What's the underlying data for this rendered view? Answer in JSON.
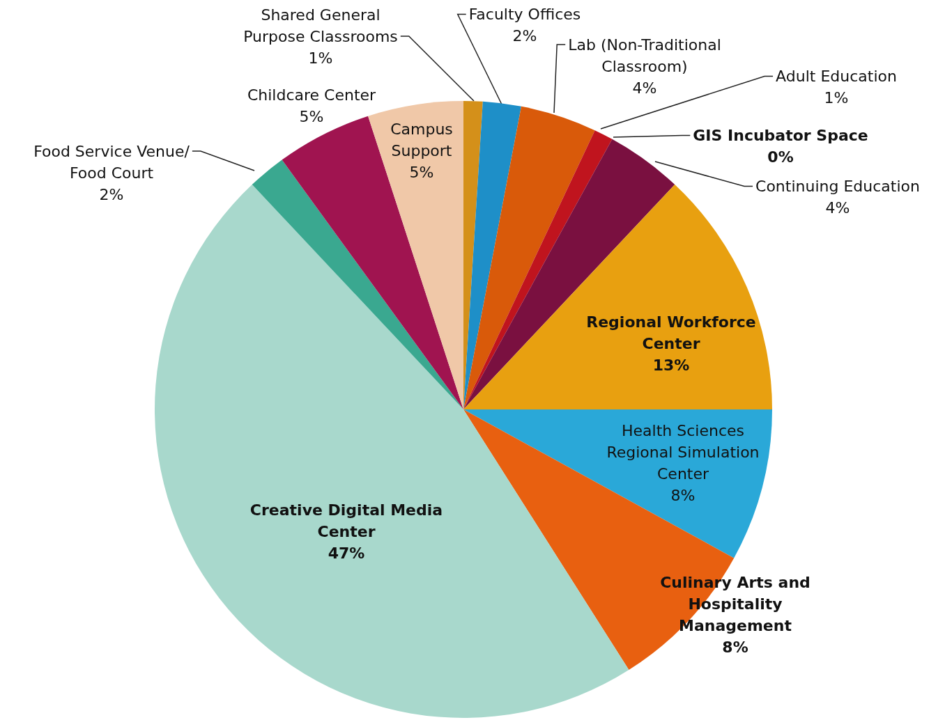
{
  "chart_data": {
    "type": "pie",
    "categories": [
      "Shared General Purpose Classrooms",
      "Faculty Offices",
      "Lab (Non-Traditional Classroom)",
      "Adult Education",
      "GIS Incubator Space",
      "Continuing Education",
      "Regional Workforce Center",
      "Health Sciences Regional Simulation Center",
      "Culinary Arts and Hospitality Management",
      "Creative Digital Media Center",
      "Food Service Venue/ Food Court",
      "Childcare Center",
      "Campus Support"
    ],
    "values": [
      1,
      2,
      4,
      1,
      0,
      4,
      13,
      8,
      8,
      47,
      2,
      5,
      5
    ],
    "value_labels": [
      "1%",
      "2%",
      "4%",
      "1%",
      "0%",
      "4%",
      "13%",
      "8%",
      "8%",
      "47%",
      "2%",
      "5%",
      "5%"
    ],
    "colors": [
      "#d4901a",
      "#1e8fc8",
      "#d95a0a",
      "#c0141e",
      "#2a9d8f",
      "#7a1040",
      "#e8a010",
      "#2aa8d8",
      "#e86010",
      "#a8d8cc",
      "#3aa890",
      "#a01450",
      "#f0c8a8"
    ],
    "legend": false
  }
}
